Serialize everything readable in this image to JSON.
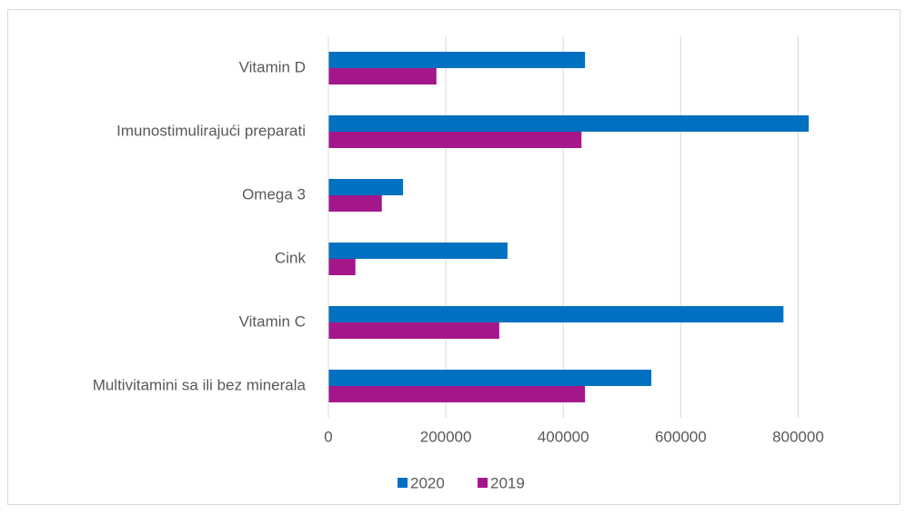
{
  "chart_data": {
    "type": "bar",
    "orientation": "horizontal",
    "categories": [
      "Vitamin D",
      "Imunostimulirajući preparati",
      "Omega 3",
      "Cink",
      "Vitamin C",
      "Multivitamini sa ili bez minerala"
    ],
    "series": [
      {
        "name": "2020",
        "color": "#0070c0",
        "values": [
          437000,
          818000,
          127000,
          305000,
          775000,
          550000
        ]
      },
      {
        "name": "2019",
        "color": "#a3178b",
        "values": [
          184000,
          431000,
          91000,
          46000,
          291000,
          437000
        ]
      }
    ],
    "xlim": [
      0,
      900000
    ],
    "xticks": [
      0,
      200000,
      400000,
      600000,
      800000
    ],
    "grid": true,
    "legend": "bottom"
  }
}
